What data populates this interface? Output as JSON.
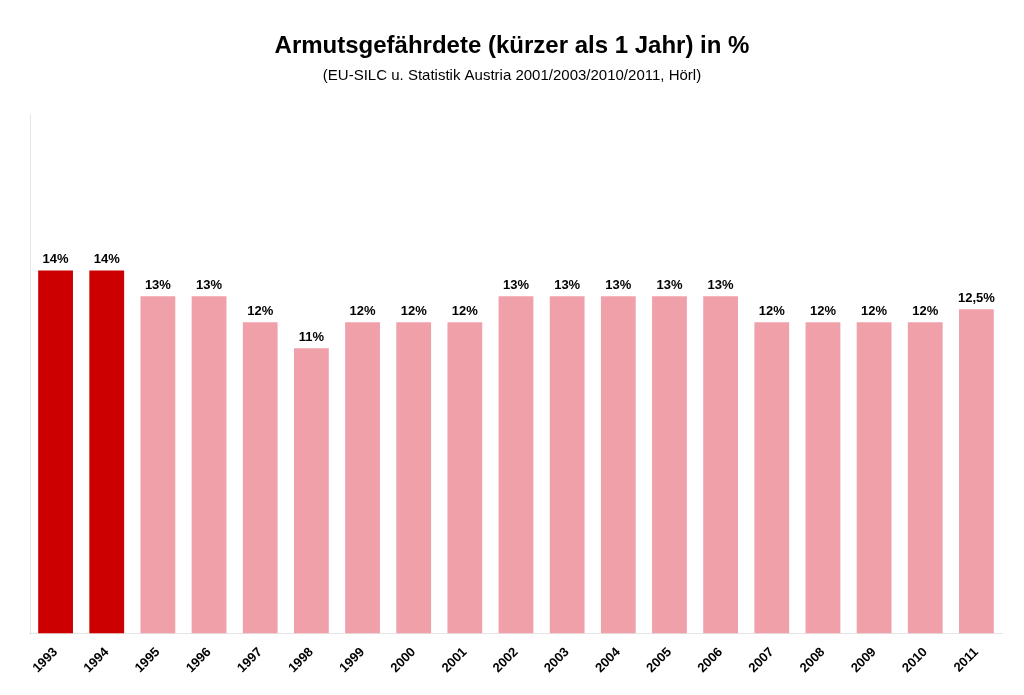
{
  "chart_data": {
    "type": "bar",
    "title": "Armutsgefährdete (kürzer als 1 Jahr) in %",
    "subtitle": "(EU-SILC u. Statistik Austria 2001/2003/2010/2011, Hörl)",
    "categories": [
      "1993",
      "1994",
      "1995",
      "1996",
      "1997",
      "1998",
      "1999",
      "2000",
      "2001",
      "2002",
      "2003",
      "2004",
      "2005",
      "2006",
      "2007",
      "2008",
      "2009",
      "2010",
      "2011"
    ],
    "values": [
      14,
      14,
      13,
      13,
      12,
      11,
      12,
      12,
      12,
      13,
      13,
      13,
      13,
      13,
      12,
      12,
      12,
      12,
      12.5
    ],
    "value_labels": [
      "14%",
      "14%",
      "13%",
      "13%",
      "12%",
      "11%",
      "12%",
      "12%",
      "12%",
      "13%",
      "13%",
      "13%",
      "13%",
      "13%",
      "12%",
      "12%",
      "12%",
      "12%",
      "12,5%"
    ],
    "colors": [
      "#cc0000",
      "#cc0000",
      "#f0a0a8",
      "#f0a0a8",
      "#f0a0a8",
      "#f0a0a8",
      "#f0a0a8",
      "#f0a0a8",
      "#f0a0a8",
      "#f0a0a8",
      "#f0a0a8",
      "#f0a0a8",
      "#f0a0a8",
      "#f0a0a8",
      "#f0a0a8",
      "#f0a0a8",
      "#f0a0a8",
      "#f0a0a8",
      "#f0a0a8"
    ],
    "ylim": [
      0,
      20
    ],
    "data_labels": true,
    "tick_labels": "x",
    "grid": false
  }
}
